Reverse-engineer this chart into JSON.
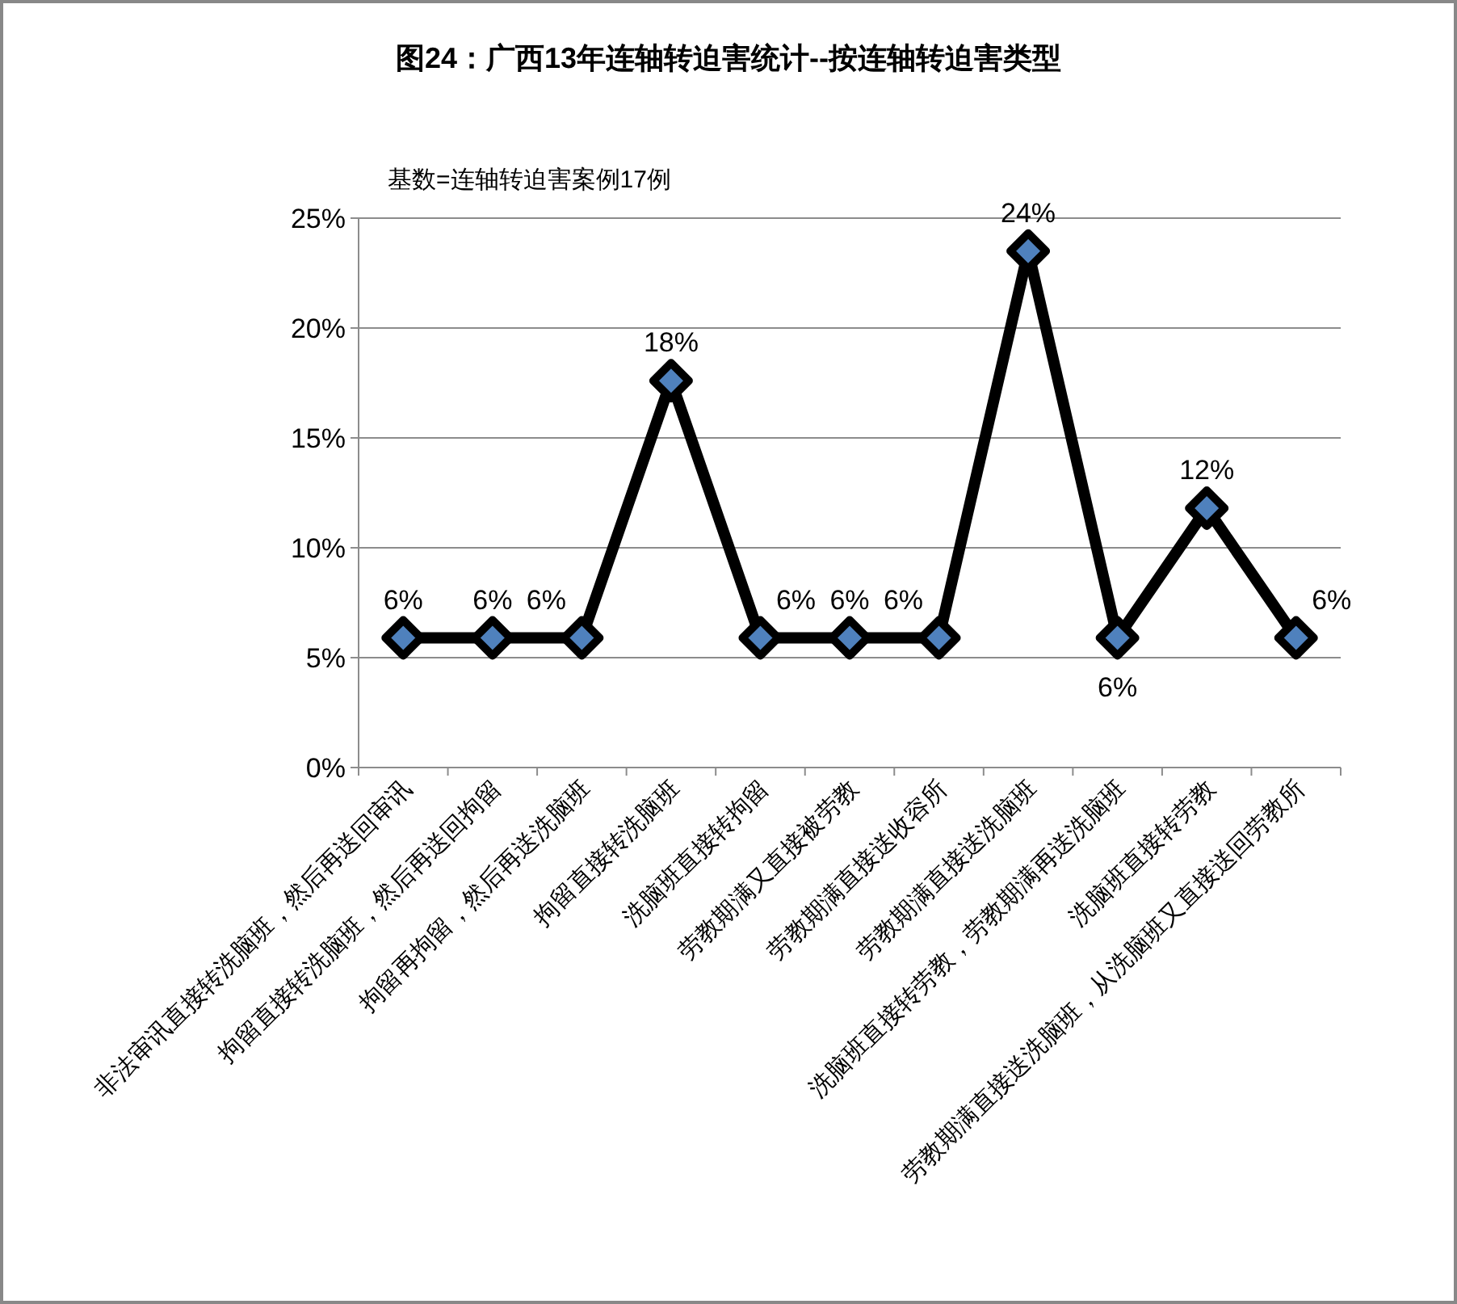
{
  "chart_data": {
    "type": "line",
    "title": "图24：广西13年连轴转迫害统计--按连轴转迫害类型",
    "annotations": [
      "基数=连轴转迫害案例17例"
    ],
    "categories": [
      "非法审讯直接转洗脑班，然后再送回审讯",
      "拘留直接转洗脑班，然后再送回拘留",
      "拘留再拘留，然后再送洗脑班",
      "拘留直接转洗脑班",
      "洗脑班直接转拘留",
      "劳教期满又直接被劳教",
      "劳教期满直接送收容所",
      "劳教期满直接送洗脑班",
      "洗脑班直接转劳教，劳教期满再送洗脑班",
      "洗脑班直接转劳教",
      "劳教期满直接送洗脑班，从洗脑班又直接送回劳教所"
    ],
    "series": [
      {
        "color": "#000000",
        "values": [
          5.9,
          5.9,
          5.9,
          17.6,
          5.9,
          5.9,
          5.9,
          23.5,
          5.9,
          11.8,
          5.9
        ],
        "value_labels": [
          "6%",
          "6%",
          "6%",
          "18%",
          "6%",
          "6%",
          "6%",
          "24%",
          "6%",
          "12%",
          "6%"
        ]
      }
    ],
    "ylim": [
      0,
      25
    ],
    "yticks": [
      {
        "value": 0,
        "label": "0%"
      },
      {
        "value": 5,
        "label": "5%"
      },
      {
        "value": 10,
        "label": "10%"
      },
      {
        "value": 15,
        "label": "15%"
      },
      {
        "value": 20,
        "label": "20%"
      },
      {
        "value": 25,
        "label": "25%"
      }
    ],
    "grid": "y",
    "marker": "diamond",
    "line_style": "solid"
  }
}
